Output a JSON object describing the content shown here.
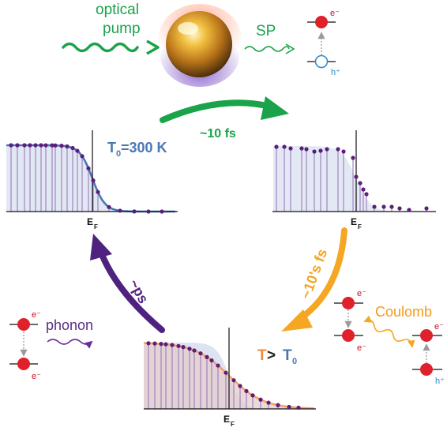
{
  "labels": {
    "optical": "optical",
    "pump": "pump",
    "sp": "SP",
    "t10fs": "~10 fs",
    "t10sfs": "~10's fs",
    "tps": "~ps",
    "phonon": "phonon",
    "coulomb": "Coulomb",
    "ef": "E",
    "ef_sub": "F",
    "electron": "e⁻",
    "hole": "h⁺",
    "t0_main": "T",
    "t0_sub": "0",
    "t0_value": "=300 K",
    "t_hot": "T",
    "t_gt": " > ",
    "t_hot_ref": "T",
    "t_hot_ref_sub": "0"
  },
  "colors": {
    "green": "#1aa34a",
    "blue_fermi": "#4a78b6",
    "orange": "#f5a623",
    "purple": "#4f2280",
    "electron_red": "#e0202a",
    "hole_blue": "#2a8cc8",
    "stick": "#9b7bb8",
    "dot": "#5a1f78"
  },
  "icons": [
    "gold-nanoparticle-icon",
    "electron-icon",
    "hole-icon",
    "wavy-arrow-icon",
    "cycle-arrow-icon"
  ]
}
